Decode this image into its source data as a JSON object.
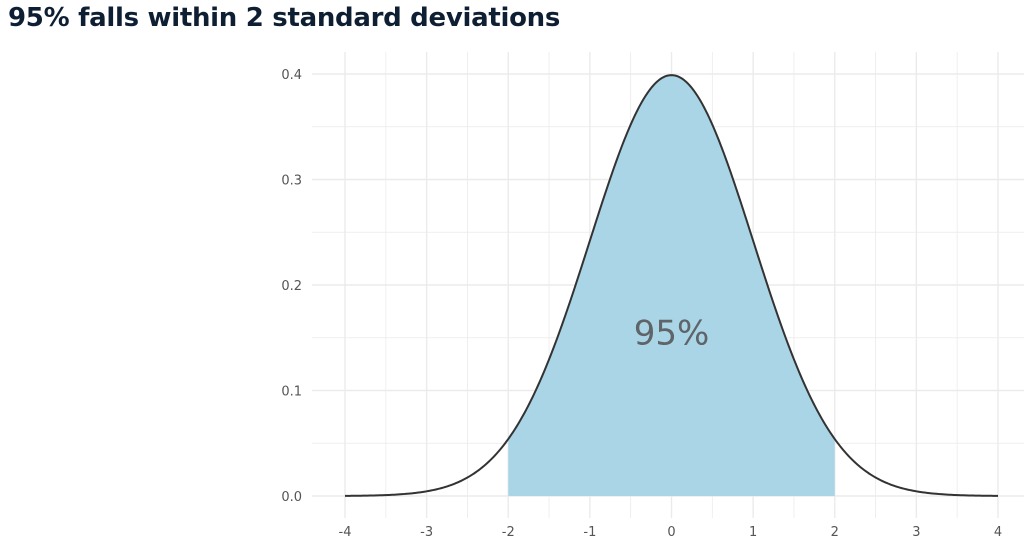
{
  "title": "95% falls within 2 standard deviations",
  "chart_data": {
    "type": "area",
    "distribution": "standard normal",
    "mean": 0,
    "sd": 1,
    "xlim": [
      -4,
      4
    ],
    "ylim": [
      0,
      0.4
    ],
    "x_ticks": [
      -4,
      -3,
      -2,
      -1,
      0,
      1,
      2,
      3,
      4
    ],
    "y_ticks": [
      0.0,
      0.1,
      0.2,
      0.3,
      0.4
    ],
    "x_tick_labels": [
      "-4",
      "-3",
      "-2",
      "-1",
      "0",
      "1",
      "2",
      "3",
      "4"
    ],
    "y_tick_labels": [
      "0.0",
      "0.1",
      "0.2",
      "0.3",
      "0.4"
    ],
    "shaded_range": [
      -2,
      2
    ],
    "shaded_label": "95%",
    "grid": true,
    "colors": {
      "curve": "#333333",
      "fill": "#a9d5e6",
      "grid": "#ebebeb",
      "title": "#0f1f33"
    }
  }
}
